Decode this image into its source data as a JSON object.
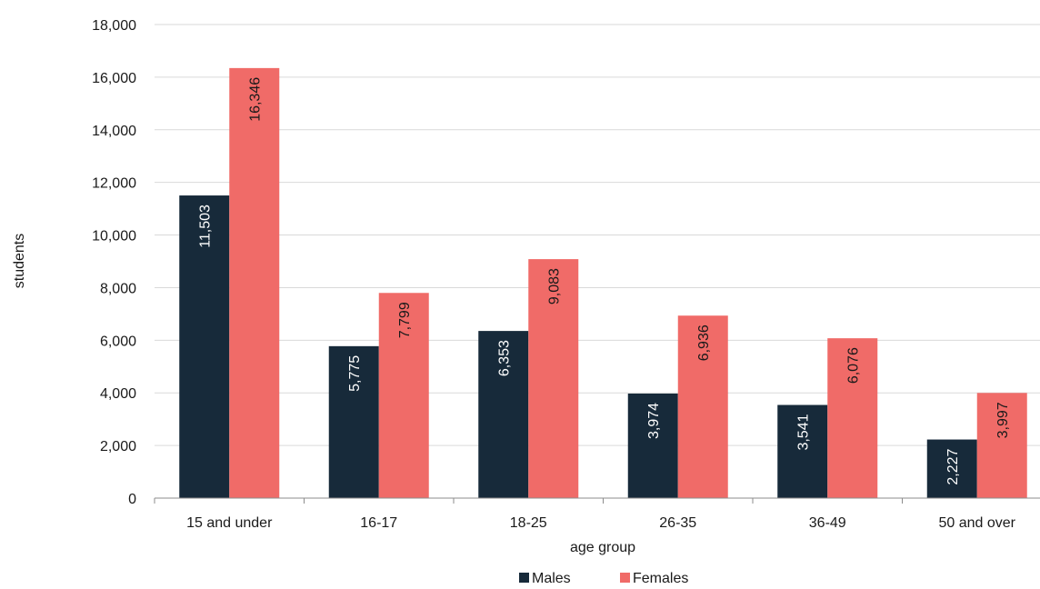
{
  "chart_data": {
    "type": "bar",
    "categories": [
      "15 and under",
      "16-17",
      "18-25",
      "26-35",
      "36-49",
      "50 and over"
    ],
    "series": [
      {
        "name": "Males",
        "color": "#172a3a",
        "label_color": "#ffffff",
        "values": [
          11503,
          5775,
          6353,
          3974,
          3541,
          2227
        ]
      },
      {
        "name": "Females",
        "color": "#f06b68",
        "label_color": "#1a1a1a",
        "values": [
          16346,
          7799,
          9083,
          6936,
          6076,
          3997
        ]
      }
    ],
    "data_labels": [
      [
        "11,503",
        "5,775",
        "6,353",
        "3,974",
        "3,541",
        "2,227"
      ],
      [
        "16,346",
        "7,799",
        "9,083",
        "6,936",
        "6,076",
        "3,997"
      ]
    ],
    "xlabel": "age group",
    "ylabel": "students",
    "ylim": [
      0,
      18000
    ],
    "yticks": [
      0,
      2000,
      4000,
      6000,
      8000,
      10000,
      12000,
      14000,
      16000,
      18000
    ],
    "ytick_labels": [
      "0",
      "2,000",
      "4,000",
      "6,000",
      "8,000",
      "10,000",
      "12,000",
      "14,000",
      "16,000",
      "18,000"
    ],
    "grid": true,
    "grid_color": "#d9d9d9",
    "axis_color": "#8c8c8c",
    "legend_position": "bottom"
  }
}
